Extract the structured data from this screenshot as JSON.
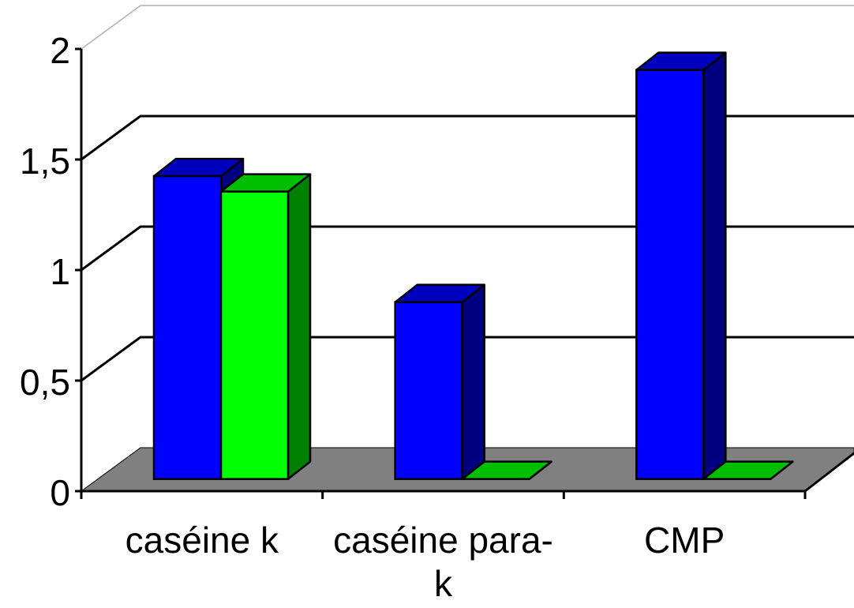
{
  "chart_data": {
    "type": "bar",
    "style": "3d-clustered-column",
    "categories": [
      "caséine k",
      "caséine para-k",
      "CMP"
    ],
    "series": [
      {
        "values": [
          1.37,
          0.8,
          1.85
        ],
        "color": "#0000FF"
      },
      {
        "values": [
          1.3,
          0,
          0
        ],
        "color": "#00FF00"
      }
    ],
    "y_ticks": [
      "0",
      "0,5",
      "1",
      "1,5",
      "2"
    ],
    "ylim": [
      0,
      2
    ],
    "grid": true,
    "floor_color": "#808080"
  }
}
